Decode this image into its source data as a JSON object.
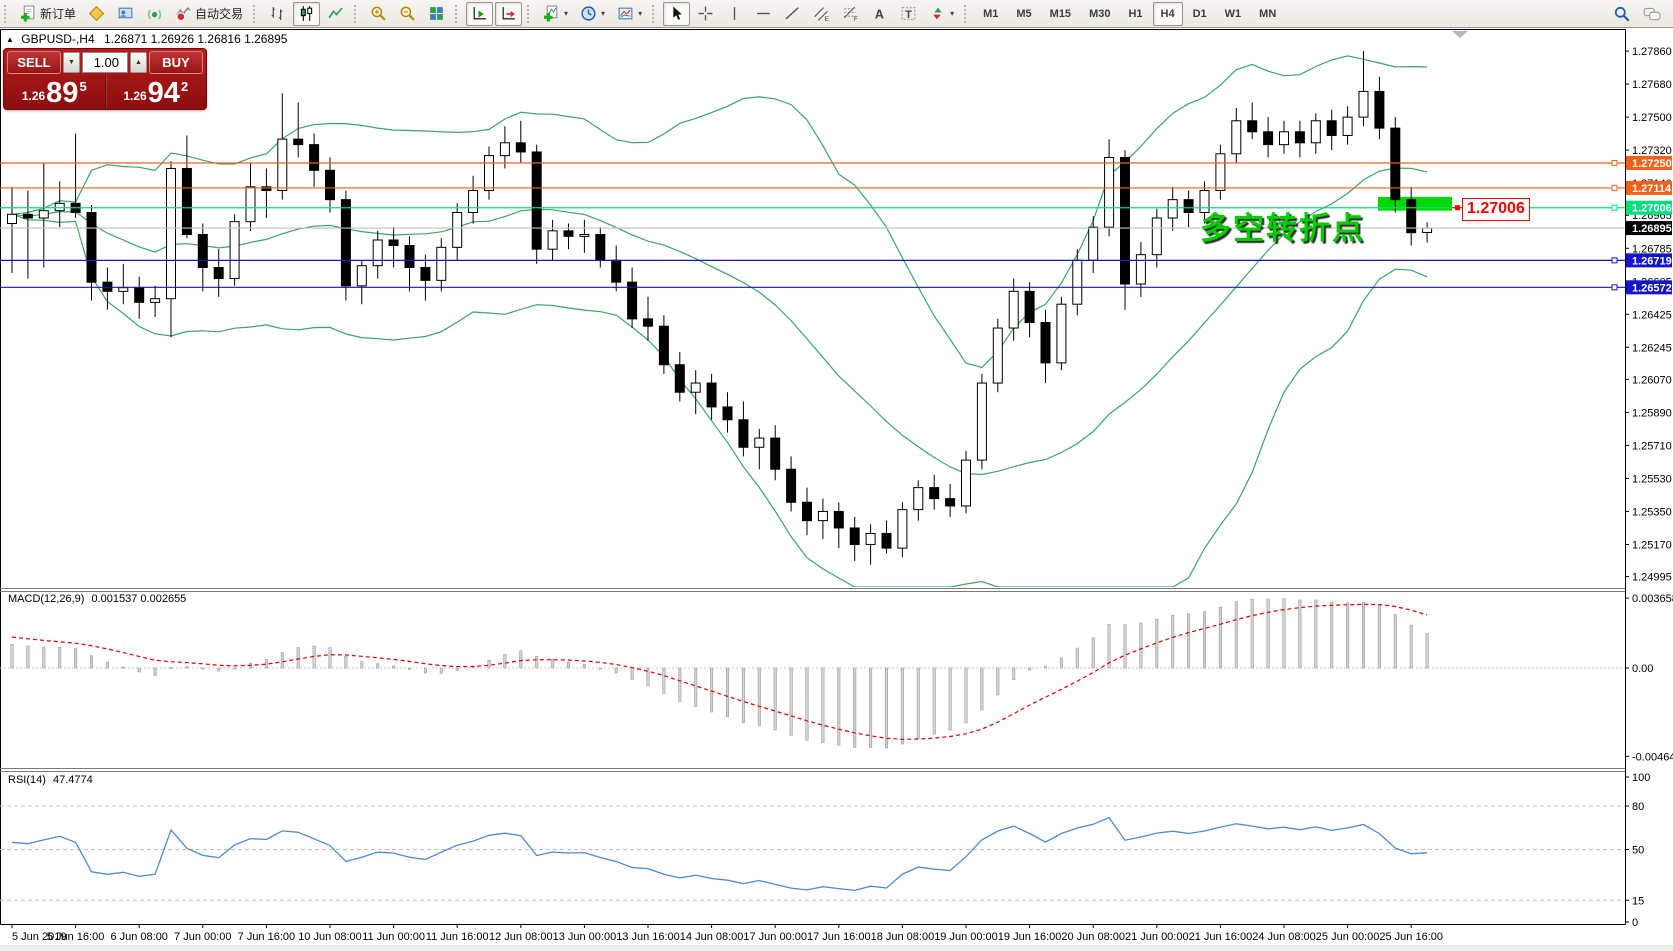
{
  "toolbar": {
    "groups": [
      {
        "items": [
          {
            "name": "new-order",
            "icon": "neworder",
            "label": "新订单"
          },
          {
            "name": "metaeditor",
            "icon": "metaeditor"
          },
          {
            "name": "terminal",
            "icon": "terminal"
          },
          {
            "name": "signals",
            "icon": "signal"
          },
          {
            "name": "autotrading",
            "icon": "autotrading",
            "label": "自动交易"
          }
        ]
      },
      {
        "items": [
          {
            "name": "bar-chart",
            "icon": "barchart"
          },
          {
            "name": "candlestick-chart",
            "icon": "candles",
            "active": true
          },
          {
            "name": "line-chart",
            "icon": "linechart"
          }
        ]
      },
      {
        "items": [
          {
            "name": "zoom-in",
            "icon": "zoomin"
          },
          {
            "name": "zoom-out",
            "icon": "zoomout"
          },
          {
            "name": "tile-windows",
            "icon": "tile"
          }
        ]
      },
      {
        "items": [
          {
            "name": "auto-scroll",
            "icon": "autoscroll",
            "active": true
          },
          {
            "name": "shift-chart",
            "icon": "shift",
            "active": true
          }
        ]
      },
      {
        "items": [
          {
            "name": "indicators",
            "icon": "indicators",
            "dropdown": true
          },
          {
            "name": "periods",
            "icon": "clock",
            "dropdown": true
          },
          {
            "name": "templates",
            "icon": "template",
            "dropdown": true
          }
        ]
      },
      {
        "items": [
          {
            "name": "cursor",
            "icon": "cursor",
            "active": true
          },
          {
            "name": "crosshair",
            "icon": "crosshair"
          },
          {
            "name": "vertical-line",
            "icon": "vline"
          },
          {
            "name": "horizontal-line",
            "icon": "hline"
          },
          {
            "name": "trendline",
            "icon": "trendline"
          },
          {
            "name": "equidistant-channel",
            "icon": "channel"
          },
          {
            "name": "fibonacci",
            "icon": "fibo"
          },
          {
            "name": "text",
            "icon": "texta"
          },
          {
            "name": "text-label",
            "icon": "textt"
          },
          {
            "name": "arrows",
            "icon": "arrows",
            "dropdown": true
          }
        ]
      }
    ],
    "timeframes": {
      "items": [
        "M1",
        "M5",
        "M15",
        "M30",
        "H1",
        "H4",
        "D1",
        "W1",
        "MN"
      ],
      "active": "H4"
    },
    "right_icons": [
      {
        "name": "search",
        "icon": "search"
      },
      {
        "name": "chat",
        "icon": "chat"
      }
    ]
  },
  "chart": {
    "title_symbol": "GBPUSD-,H4",
    "title_ohlc": "1.26871 1.26926 1.26816 1.26895",
    "annotation": "多空转折点",
    "price_tag": "1.27006"
  },
  "one_click": {
    "sell_label": "SELL",
    "buy_label": "BUY",
    "volume": "1.00",
    "sell_price_prefix": "1.26",
    "sell_price_big": "89",
    "sell_price_sup": "5",
    "buy_price_prefix": "1.26",
    "buy_price_big": "94",
    "buy_price_sup": "2"
  },
  "indicators": {
    "macd_label": "MACD(12,26,9)",
    "macd_values": "0.001537 0.002655",
    "rsi_label": "RSI(14)",
    "rsi_value": "47.4774"
  },
  "chart_data": {
    "type": "candlestick",
    "symbol": "GBPUSD-",
    "period": "H4",
    "title": "GBPUSD-,H4",
    "current": {
      "open": 1.26871,
      "high": 1.26926,
      "low": 1.26816,
      "close": 1.26895,
      "bid": 1.26895
    },
    "price_ticks": [
      "1.27860",
      "1.27680",
      "1.27500",
      "1.27320",
      "1.27140",
      "1.26965",
      "1.26785",
      "1.26605",
      "1.26425",
      "1.26245",
      "1.26070",
      "1.25890",
      "1.25710",
      "1.25530",
      "1.25350",
      "1.25170",
      "1.24995"
    ],
    "time_labels": [
      "5 Jun 2019",
      "5 Jun 16:00",
      "6 Jun 08:00",
      "7 Jun 00:00",
      "7 Jun 16:00",
      "10 Jun 08:00",
      "11 Jun 00:00",
      "11 Jun 16:00",
      "12 Jun 08:00",
      "13 Jun 00:00",
      "13 Jun 16:00",
      "14 Jun 08:00",
      "17 Jun 00:00",
      "17 Jun 16:00",
      "18 Jun 08:00",
      "19 Jun 00:00",
      "19 Jun 16:00",
      "20 Jun 08:00",
      "21 Jun 00:00",
      "21 Jun 16:00",
      "24 Jun 08:00",
      "25 Jun 00:00",
      "25 Jun 16:00"
    ],
    "label_interval": 4,
    "candles": [
      [
        1.2692,
        1.2712,
        1.2665,
        1.2697
      ],
      [
        1.2697,
        1.271,
        1.2662,
        1.2695
      ],
      [
        1.2695,
        1.2725,
        1.2668,
        1.2699
      ],
      [
        1.2699,
        1.2715,
        1.269,
        1.2703
      ],
      [
        1.2703,
        1.2741,
        1.2695,
        1.2698
      ],
      [
        1.2698,
        1.2702,
        1.265,
        1.266
      ],
      [
        1.266,
        1.2668,
        1.2645,
        1.2655
      ],
      [
        1.2655,
        1.267,
        1.2648,
        1.2657
      ],
      [
        1.2657,
        1.2663,
        1.264,
        1.2649
      ],
      [
        1.2649,
        1.2658,
        1.2641,
        1.2651
      ],
      [
        1.2651,
        1.2726,
        1.263,
        1.2722
      ],
      [
        1.2722,
        1.274,
        1.2684,
        1.2686
      ],
      [
        1.2686,
        1.2692,
        1.2655,
        1.2668
      ],
      [
        1.2668,
        1.2678,
        1.2652,
        1.2662
      ],
      [
        1.2662,
        1.2697,
        1.2658,
        1.2693
      ],
      [
        1.2693,
        1.2725,
        1.2688,
        1.2712
      ],
      [
        1.2712,
        1.2722,
        1.2695,
        1.271
      ],
      [
        1.271,
        1.2763,
        1.2705,
        1.2738
      ],
      [
        1.2738,
        1.2758,
        1.2728,
        1.2735
      ],
      [
        1.2735,
        1.2741,
        1.2712,
        1.2721
      ],
      [
        1.2721,
        1.2728,
        1.2698,
        1.2705
      ],
      [
        1.2705,
        1.271,
        1.265,
        1.2658
      ],
      [
        1.2658,
        1.2672,
        1.2648,
        1.2669
      ],
      [
        1.2669,
        1.2688,
        1.2662,
        1.2683
      ],
      [
        1.2683,
        1.269,
        1.2668,
        1.268
      ],
      [
        1.268,
        1.2685,
        1.2655,
        1.2668
      ],
      [
        1.2668,
        1.2675,
        1.265,
        1.2661
      ],
      [
        1.2661,
        1.2684,
        1.2655,
        1.2679
      ],
      [
        1.2679,
        1.2703,
        1.2672,
        1.2698
      ],
      [
        1.2698,
        1.2718,
        1.2692,
        1.271
      ],
      [
        1.271,
        1.2734,
        1.2705,
        1.2729
      ],
      [
        1.2729,
        1.2745,
        1.2722,
        1.2736
      ],
      [
        1.2736,
        1.2748,
        1.2725,
        1.2731
      ],
      [
        1.2731,
        1.2735,
        1.267,
        1.2678
      ],
      [
        1.2678,
        1.2694,
        1.2672,
        1.2688
      ],
      [
        1.2688,
        1.2692,
        1.2678,
        1.2685
      ],
      [
        1.2685,
        1.2694,
        1.2676,
        1.2686
      ],
      [
        1.2686,
        1.269,
        1.2668,
        1.2672
      ],
      [
        1.2672,
        1.268,
        1.2655,
        1.266
      ],
      [
        1.266,
        1.2668,
        1.2635,
        1.264
      ],
      [
        1.264,
        1.2652,
        1.2628,
        1.2636
      ],
      [
        1.2636,
        1.2642,
        1.261,
        1.2615
      ],
      [
        1.2615,
        1.2622,
        1.2595,
        1.26
      ],
      [
        1.26,
        1.2612,
        1.2588,
        1.2605
      ],
      [
        1.2605,
        1.261,
        1.2585,
        1.2592
      ],
      [
        1.2592,
        1.26,
        1.2578,
        1.2585
      ],
      [
        1.2585,
        1.2595,
        1.2565,
        1.257
      ],
      [
        1.257,
        1.258,
        1.2558,
        1.2575
      ],
      [
        1.2575,
        1.2582,
        1.2552,
        1.2558
      ],
      [
        1.2558,
        1.2565,
        1.2535,
        1.254
      ],
      [
        1.254,
        1.2548,
        1.2522,
        1.253
      ],
      [
        1.253,
        1.2542,
        1.252,
        1.2535
      ],
      [
        1.2535,
        1.254,
        1.2515,
        1.2526
      ],
      [
        1.2526,
        1.2532,
        1.2508,
        1.2517
      ],
      [
        1.2517,
        1.2528,
        1.2506,
        1.2523
      ],
      [
        1.2523,
        1.253,
        1.2512,
        1.2515
      ],
      [
        1.2515,
        1.254,
        1.251,
        1.2536
      ],
      [
        1.2536,
        1.2552,
        1.253,
        1.2548
      ],
      [
        1.2548,
        1.2555,
        1.2536,
        1.2542
      ],
      [
        1.2542,
        1.255,
        1.2532,
        1.2538
      ],
      [
        1.2538,
        1.2568,
        1.2534,
        1.2563
      ],
      [
        1.2563,
        1.261,
        1.2558,
        1.2605
      ],
      [
        1.2605,
        1.264,
        1.26,
        1.2635
      ],
      [
        1.2635,
        1.2662,
        1.2628,
        1.2655
      ],
      [
        1.2655,
        1.266,
        1.263,
        1.2638
      ],
      [
        1.2638,
        1.2645,
        1.2605,
        1.2616
      ],
      [
        1.2616,
        1.2652,
        1.2612,
        1.2648
      ],
      [
        1.2648,
        1.2678,
        1.2642,
        1.2672
      ],
      [
        1.2672,
        1.2696,
        1.2665,
        1.269
      ],
      [
        1.269,
        1.2738,
        1.2685,
        1.2728
      ],
      [
        1.2728,
        1.2732,
        1.2645,
        1.2659
      ],
      [
        1.2659,
        1.2682,
        1.2652,
        1.2675
      ],
      [
        1.2675,
        1.27,
        1.2668,
        1.2695
      ],
      [
        1.2695,
        1.2712,
        1.2688,
        1.2705
      ],
      [
        1.2705,
        1.271,
        1.269,
        1.2698
      ],
      [
        1.2698,
        1.2715,
        1.2692,
        1.271
      ],
      [
        1.271,
        1.2735,
        1.2705,
        1.273
      ],
      [
        1.273,
        1.2755,
        1.2725,
        1.2748
      ],
      [
        1.2748,
        1.2758,
        1.2738,
        1.2742
      ],
      [
        1.2742,
        1.275,
        1.2728,
        1.2735
      ],
      [
        1.2735,
        1.2748,
        1.273,
        1.2742
      ],
      [
        1.2742,
        1.2748,
        1.2728,
        1.2736
      ],
      [
        1.2736,
        1.2752,
        1.273,
        1.2748
      ],
      [
        1.2748,
        1.2754,
        1.2732,
        1.274
      ],
      [
        1.274,
        1.2756,
        1.2735,
        1.275
      ],
      [
        1.275,
        1.2786,
        1.2745,
        1.2764
      ],
      [
        1.2764,
        1.2772,
        1.2738,
        1.2744
      ],
      [
        1.2744,
        1.275,
        1.2698,
        1.2705
      ],
      [
        1.2705,
        1.2712,
        1.268,
        1.2687
      ],
      [
        1.26871,
        1.26926,
        1.26816,
        1.26895
      ]
    ],
    "hlines": [
      {
        "price": 1.2725,
        "label": "1.27250",
        "color": "#f2601a",
        "style": "object"
      },
      {
        "price": 1.27114,
        "label": "1.27114",
        "color": "#f2601a",
        "style": "object"
      },
      {
        "price": 1.27006,
        "label": "1.27006",
        "color": "#00df7e",
        "style": "object"
      },
      {
        "price": 1.26719,
        "label": "1.26719",
        "color": "#1414cc",
        "style": "object"
      },
      {
        "price": 1.26572,
        "label": "1.26572",
        "color": "#1414cc",
        "style": "object"
      }
    ],
    "current_price_line": {
      "price": 1.26895,
      "label": "1.26895",
      "line_color": "#c0c0c0",
      "badge_bg": "#000000"
    },
    "highlight_rect": {
      "price_top": 1.27065,
      "price_bottom": 1.2699,
      "color": "#00d800"
    },
    "bollinger": {
      "period": 20,
      "deviation": 2,
      "color": "#3ba567"
    },
    "macd": {
      "fast": 12,
      "slow": 26,
      "signal": 9,
      "bar_color": "#d4d4d4",
      "bar_stroke": "#9a9a9a",
      "signal_color": "#e00000",
      "ticks": [
        {
          "v": 0.003658,
          "label": "0.003658"
        },
        {
          "v": 0,
          "label": "0.00"
        },
        {
          "v": -0.004645,
          "label": "-0.004645"
        }
      ]
    },
    "rsi": {
      "period": 14,
      "color": "#4e8bd5",
      "levels": [
        80,
        50,
        15
      ],
      "ticks": [
        {
          "v": 100,
          "label": "100"
        },
        {
          "v": 80,
          "label": "80"
        },
        {
          "v": 50,
          "label": "50"
        },
        {
          "v": 15,
          "label": "15"
        },
        {
          "v": 0,
          "label": "0"
        }
      ]
    }
  }
}
